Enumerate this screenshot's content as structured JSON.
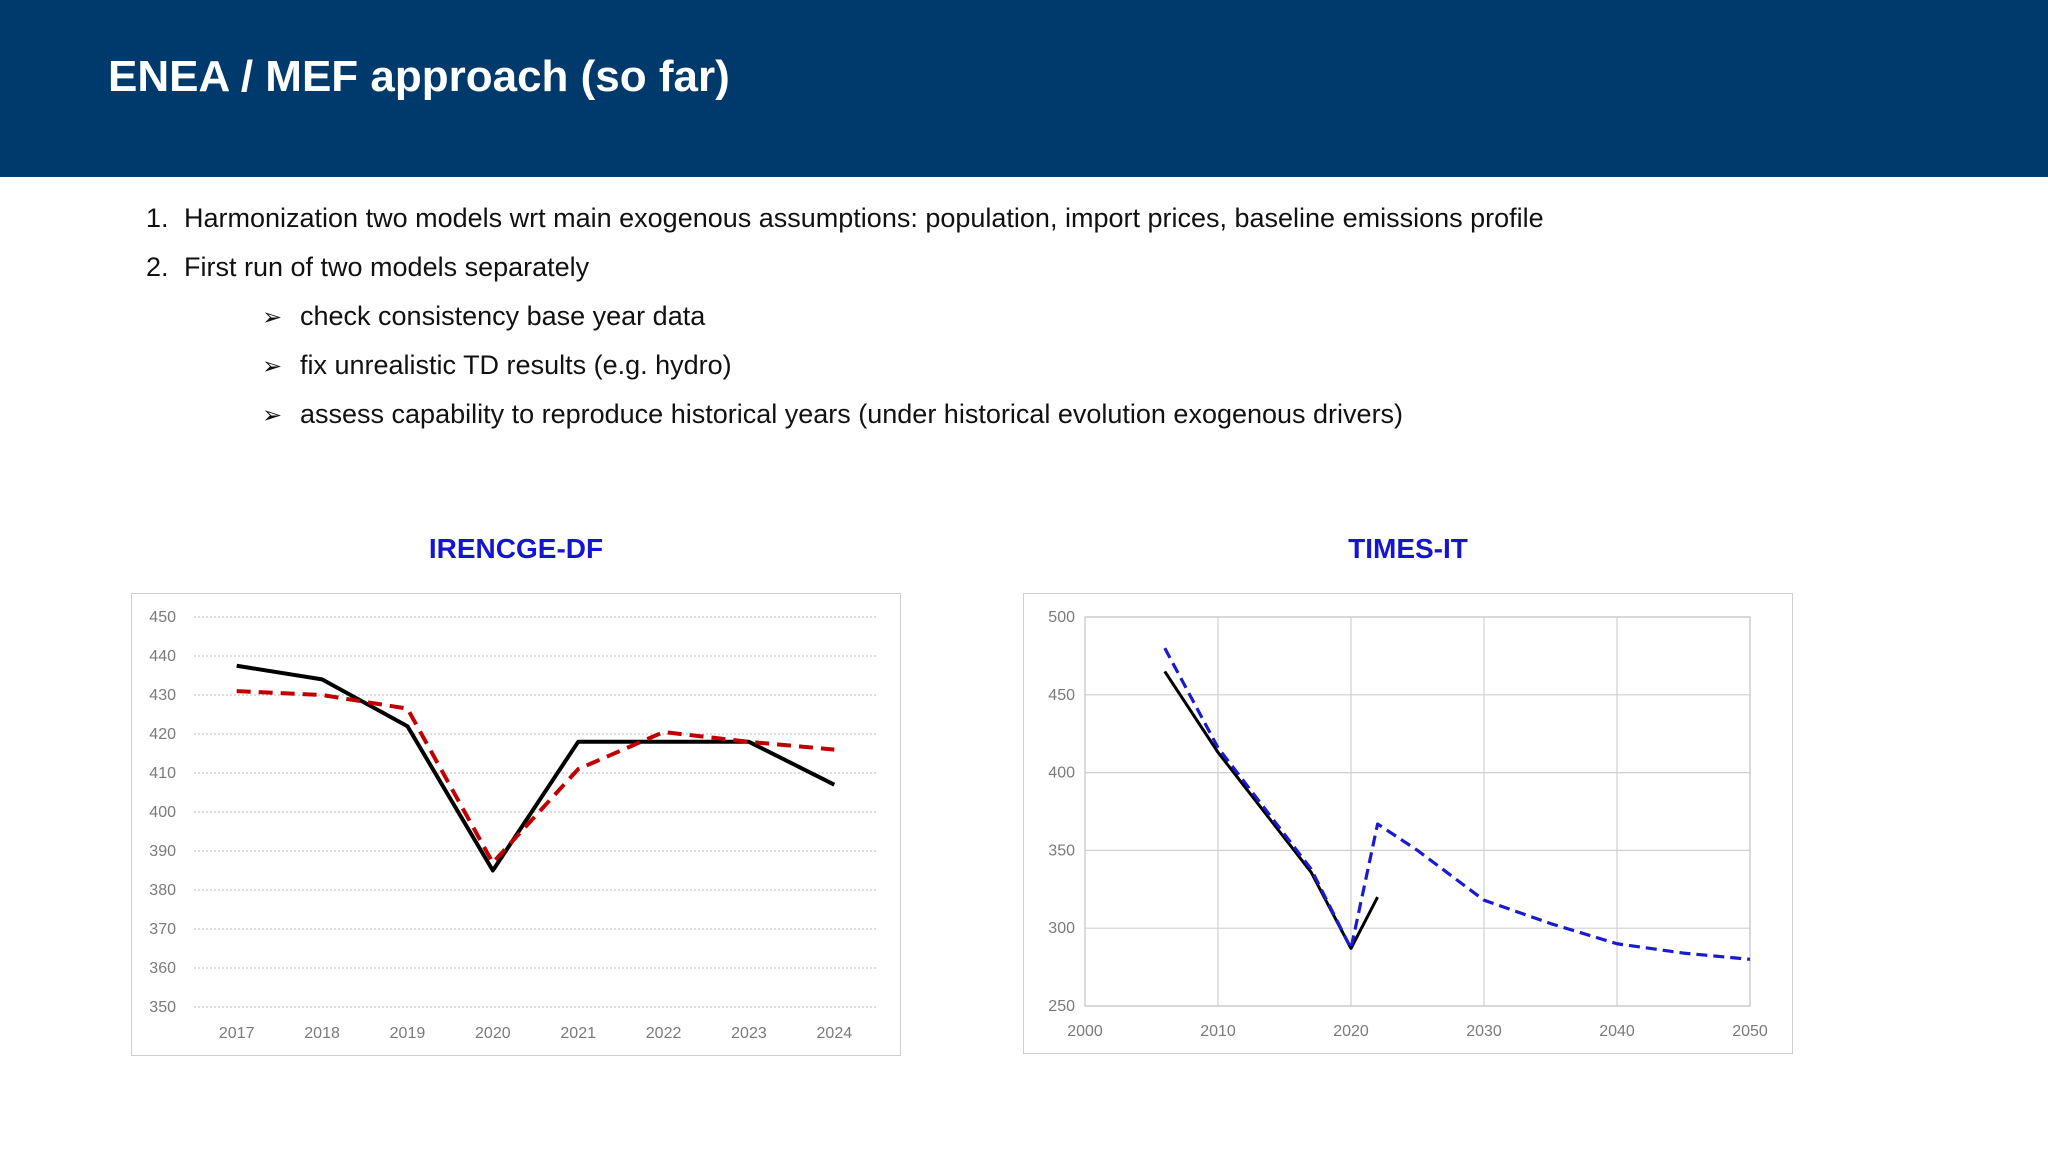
{
  "header": {
    "title": "ENEA / MEF approach (so far)"
  },
  "bullets": [
    {
      "marker": "1.",
      "text": "Harmonization two models wrt main exogenous assumptions: population, import prices, baseline emissions profile"
    },
    {
      "marker": "2.",
      "text": "First run of two models separately"
    }
  ],
  "sub_bullets": [
    {
      "marker": "➢",
      "text": "check consistency base year data"
    },
    {
      "marker": "➢",
      "text": "fix unrealistic TD results (e.g. hydro)"
    },
    {
      "marker": "➢",
      "text": "assess capability to reproduce historical years (under historical evolution exogenous drivers)"
    }
  ],
  "colors": {
    "header_bg": "#003a6c",
    "chart_title": "#1414d4",
    "black_series": "#000000",
    "red_series": "#c00000",
    "blue_series": "#1a1ad0"
  },
  "chart_data": [
    {
      "type": "line",
      "title": "IRENCGE-DF",
      "categories": [
        "2017",
        "2018",
        "2019",
        "2020",
        "2021",
        "2022",
        "2023",
        "2024"
      ],
      "ylim": [
        350,
        450
      ],
      "yticks": [
        350,
        360,
        370,
        380,
        390,
        400,
        410,
        420,
        430,
        440,
        450
      ],
      "grid": "horizontal-dotted",
      "legend": "none",
      "series": [
        {
          "color": "#000000",
          "style": "solid",
          "values": [
            437.5,
            434,
            422,
            385,
            418,
            418,
            418,
            407
          ]
        },
        {
          "color": "#c00000",
          "style": "dashed",
          "values": [
            431,
            430,
            426.5,
            387,
            411,
            420.5,
            418,
            416
          ]
        }
      ]
    },
    {
      "type": "line",
      "title": "TIMES-IT",
      "xlim": [
        2000,
        2050
      ],
      "xticks": [
        2000,
        2010,
        2020,
        2030,
        2040,
        2050
      ],
      "ylim": [
        250,
        500
      ],
      "yticks": [
        250,
        300,
        350,
        400,
        450,
        500
      ],
      "grid": "both",
      "legend": "none",
      "series": [
        {
          "color": "#000000",
          "style": "solid",
          "points": [
            [
              2006,
              465
            ],
            [
              2010,
              413
            ],
            [
              2017,
              336
            ],
            [
              2020,
              287
            ],
            [
              2022,
              320
            ]
          ]
        },
        {
          "color": "#1a1ad0",
          "style": "dashed",
          "points": [
            [
              2006,
              480
            ],
            [
              2010,
              416
            ],
            [
              2017,
              338
            ],
            [
              2020,
              287
            ],
            [
              2022,
              367
            ],
            [
              2025,
              350
            ],
            [
              2030,
              318
            ],
            [
              2035,
              303
            ],
            [
              2040,
              290
            ],
            [
              2045,
              284
            ],
            [
              2050,
              280
            ]
          ]
        }
      ]
    }
  ]
}
